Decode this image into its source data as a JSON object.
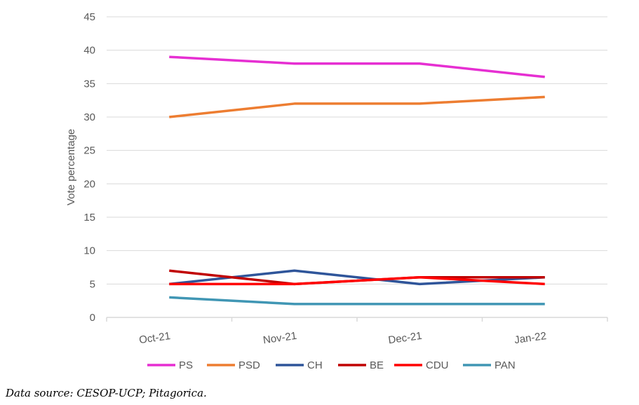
{
  "chart_data": {
    "type": "line",
    "title": "",
    "xlabel": "",
    "ylabel": "Vote percentage",
    "ylim": [
      0,
      45
    ],
    "yticks": [
      0,
      5,
      10,
      15,
      20,
      25,
      30,
      35,
      40,
      45
    ],
    "categories": [
      "Oct-21",
      "Nov-21",
      "Dec-21",
      "Jan-22"
    ],
    "grid": "horizontal",
    "legend_position": "bottom",
    "series": [
      {
        "name": "PS",
        "color": "#E62FD2",
        "values": [
          39,
          38,
          38,
          36
        ]
      },
      {
        "name": "PSD",
        "color": "#ED7D31",
        "values": [
          30,
          32,
          32,
          33
        ]
      },
      {
        "name": "CH",
        "color": "#2F559A",
        "values": [
          5,
          7,
          5,
          6
        ]
      },
      {
        "name": "BE",
        "color": "#C00000",
        "values": [
          7,
          5,
          6,
          6
        ]
      },
      {
        "name": "CDU",
        "color": "#FF0000",
        "values": [
          5,
          5,
          6,
          5
        ]
      },
      {
        "name": "PAN",
        "color": "#4096B4",
        "values": [
          3,
          2,
          2,
          2
        ]
      }
    ]
  },
  "source": "Data source: CESOP-UCP; Pitagorica."
}
